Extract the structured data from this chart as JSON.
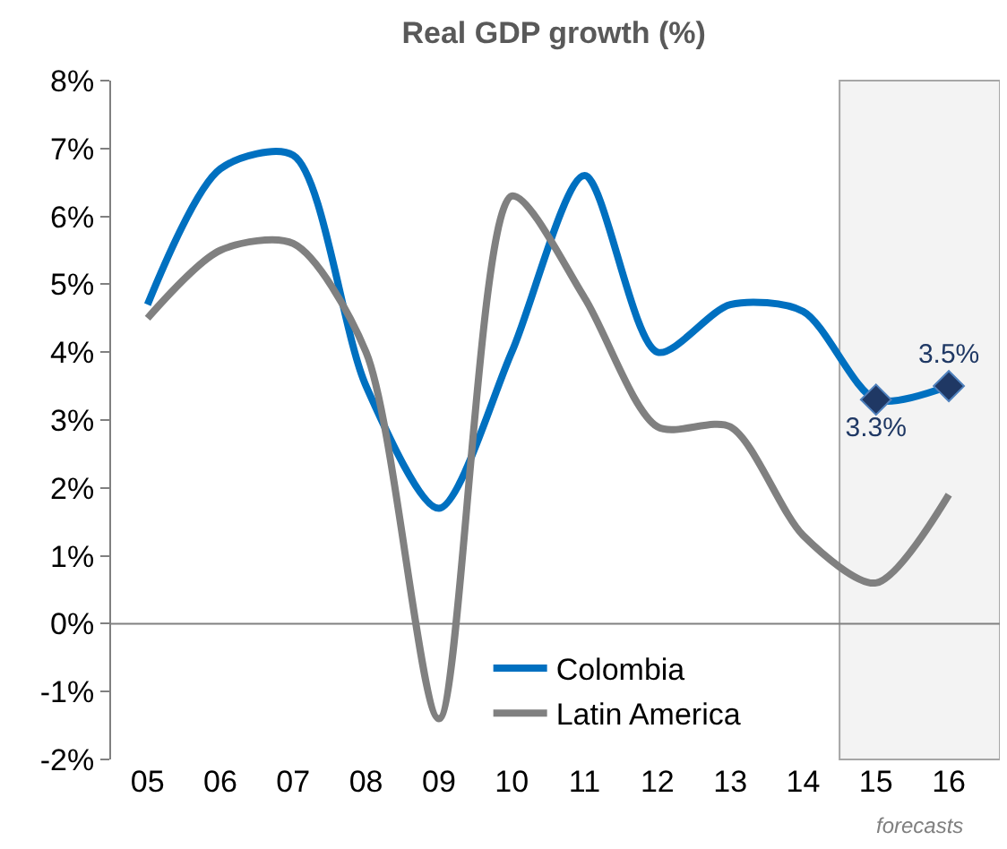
{
  "chart_data": {
    "type": "line",
    "title": "Real GDP growth (%)",
    "x": [
      2005,
      2006,
      2007,
      2008,
      2009,
      2010,
      2011,
      2012,
      2013,
      2014,
      2015,
      2016
    ],
    "series": [
      {
        "name": "Colombia",
        "color": "#0070c0",
        "values": [
          4.7,
          6.7,
          6.9,
          3.5,
          1.7,
          4.0,
          6.6,
          4.0,
          4.7,
          4.6,
          3.3,
          3.5
        ]
      },
      {
        "name": "Latin America",
        "color": "#808080",
        "values": [
          4.5,
          5.5,
          5.6,
          4.0,
          -1.4,
          6.3,
          4.8,
          2.9,
          2.9,
          1.3,
          0.6,
          1.9
        ]
      },
      {
        "type": "scatter",
        "color": "#1f3864",
        "x": [
          2015,
          2016
        ],
        "values": [
          3.3,
          3.5
        ],
        "value_labels": [
          "3.3%",
          "3.5%"
        ],
        "marker": "diamond"
      }
    ],
    "xlim": [
      2004.5,
      2016.7
    ],
    "xticks": [
      {
        "value": 2005,
        "label": "05"
      },
      {
        "value": 2006,
        "label": "06"
      },
      {
        "value": 2007,
        "label": "07"
      },
      {
        "value": 2008,
        "label": "08"
      },
      {
        "value": 2009,
        "label": "09"
      },
      {
        "value": 2010,
        "label": "10"
      },
      {
        "value": 2011,
        "label": "11"
      },
      {
        "value": 2012,
        "label": "12"
      },
      {
        "value": 2013,
        "label": "13"
      },
      {
        "value": 2014,
        "label": "14"
      },
      {
        "value": 2015,
        "label": "15"
      },
      {
        "value": 2016,
        "label": "16"
      }
    ],
    "ylim": [
      -2,
      8
    ],
    "yticks": [
      {
        "value": -2,
        "label": "-2%"
      },
      {
        "value": -1,
        "label": "-1%"
      },
      {
        "value": 0,
        "label": "0%"
      },
      {
        "value": 1,
        "label": "1%"
      },
      {
        "value": 2,
        "label": "2%"
      },
      {
        "value": 3,
        "label": "3%"
      },
      {
        "value": 4,
        "label": "4%"
      },
      {
        "value": 5,
        "label": "5%"
      },
      {
        "value": 6,
        "label": "6%"
      },
      {
        "value": 7,
        "label": "7%"
      },
      {
        "value": 8,
        "label": "8%"
      }
    ],
    "bands": [
      {
        "axis": "x",
        "from": 2014.5,
        "to": 2016.7,
        "label": "forecasts",
        "color": "#a6a6a6"
      }
    ],
    "ref_lines": [
      {
        "axis": "y",
        "value": 0,
        "color": "#808080"
      }
    ],
    "legend": "bottom",
    "grid": false,
    "marker": "none",
    "line_style": "solid"
  }
}
